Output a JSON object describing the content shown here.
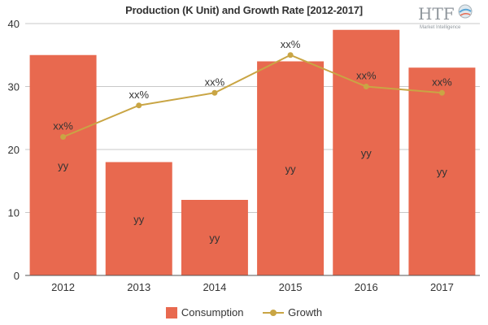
{
  "chart_data": {
    "type": "bar",
    "title": "Production (K Unit) and Growth Rate [2012-2017]",
    "categories": [
      "2012",
      "2013",
      "2014",
      "2015",
      "2016",
      "2017"
    ],
    "series": [
      {
        "name": "Consumption",
        "type": "bar",
        "values": [
          35,
          18,
          12,
          34,
          39,
          33
        ],
        "labels": [
          "yy",
          "yy",
          "yy",
          "yy",
          "yy",
          "yy"
        ],
        "color": "#e8694f"
      },
      {
        "name": "Growth",
        "type": "line",
        "values": [
          22,
          27,
          29,
          35,
          30,
          29
        ],
        "labels": [
          "xx%",
          "xx%",
          "xx%",
          "xx%",
          "xx%",
          "xx%"
        ],
        "color": "#c9a544"
      }
    ],
    "ylim": [
      0,
      40
    ],
    "yticks": [
      "0",
      "10",
      "20",
      "30",
      "40"
    ],
    "xlabel": "",
    "ylabel": "",
    "grid": "horizontal",
    "legend_position": "bottom"
  },
  "logo": {
    "text": "HTF",
    "subtext": "Market Intelligence"
  }
}
